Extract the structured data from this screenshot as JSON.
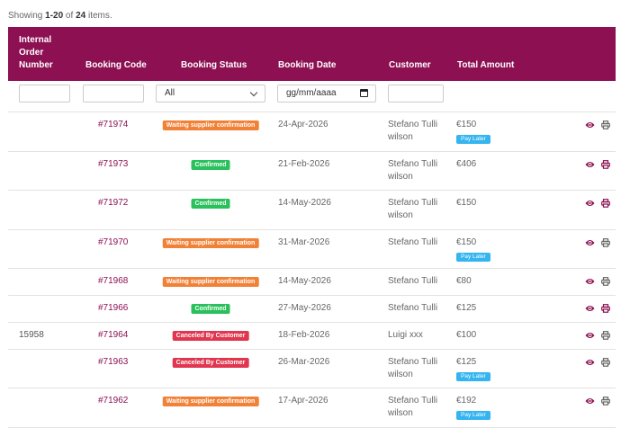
{
  "summary": {
    "prefix": "Showing ",
    "range": "1-20",
    "mid": " of ",
    "total": "24",
    "suffix": " items."
  },
  "columns": {
    "order_line1": "Internal",
    "order_line2": "Order",
    "order_line3": "Number",
    "code": "Booking Code",
    "status": "Booking Status",
    "date": "Booking Date",
    "customer": "Customer",
    "amount": "Total Amount"
  },
  "filters": {
    "status_selected": "All",
    "date_placeholder": "gg/mm/aaaa"
  },
  "colors": {
    "accent": "#8c1052",
    "waiting": "#f08137",
    "confirmed": "#2ac05c",
    "canceled": "#e03650",
    "pay_later": "#35b5f0"
  },
  "rows": [
    {
      "order": "",
      "code": "#71974",
      "status": "Waiting supplier confirmation",
      "status_type": "waiting",
      "date": "24-Apr-2026",
      "customer1": "Stefano Tulli",
      "customer2": "wilson",
      "amount": "€150",
      "pay_later": "Pay Later",
      "print_active": false
    },
    {
      "order": "",
      "code": "#71973",
      "status": "Confirmed",
      "status_type": "confirmed",
      "date": "21-Feb-2026",
      "customer1": "Stefano Tulli",
      "customer2": "wilson",
      "amount": "€406",
      "pay_later": "",
      "print_active": true
    },
    {
      "order": "",
      "code": "#71972",
      "status": "Confirmed",
      "status_type": "confirmed",
      "date": "14-May-2026",
      "customer1": "Stefano Tulli",
      "customer2": "wilson",
      "amount": "€150",
      "pay_later": "",
      "print_active": true
    },
    {
      "order": "",
      "code": "#71970",
      "status": "Waiting supplier confirmation",
      "status_type": "waiting",
      "date": "31-Mar-2026",
      "customer1": "Stefano Tulli",
      "customer2": "",
      "amount": "€150",
      "pay_later": "Pay Later",
      "print_active": false
    },
    {
      "order": "",
      "code": "#71968",
      "status": "Waiting supplier confirmation",
      "status_type": "waiting",
      "date": "14-May-2026",
      "customer1": "Stefano Tulli",
      "customer2": "",
      "amount": "€80",
      "pay_later": "",
      "print_active": false
    },
    {
      "order": "",
      "code": "#71966",
      "status": "Confirmed",
      "status_type": "confirmed",
      "date": "27-May-2026",
      "customer1": "Stefano Tulli",
      "customer2": "",
      "amount": "€125",
      "pay_later": "",
      "print_active": true
    },
    {
      "order": "15958",
      "code": "#71964",
      "status": "Canceled By Customer",
      "status_type": "canceled",
      "date": "18-Feb-2026",
      "customer1": "Luigi xxx",
      "customer2": "",
      "amount": "€100",
      "pay_later": "",
      "print_active": false
    },
    {
      "order": "",
      "code": "#71963",
      "status": "Canceled By Customer",
      "status_type": "canceled",
      "date": "26-Mar-2026",
      "customer1": "Stefano Tulli",
      "customer2": "wilson",
      "amount": "€125",
      "pay_later": "Pay Later",
      "print_active": false
    },
    {
      "order": "",
      "code": "#71962",
      "status": "Waiting supplier confirmation",
      "status_type": "waiting",
      "date": "17-Apr-2026",
      "customer1": "Stefano Tulli",
      "customer2": "wilson",
      "amount": "€192",
      "pay_later": "Pay Later",
      "print_active": false
    }
  ]
}
